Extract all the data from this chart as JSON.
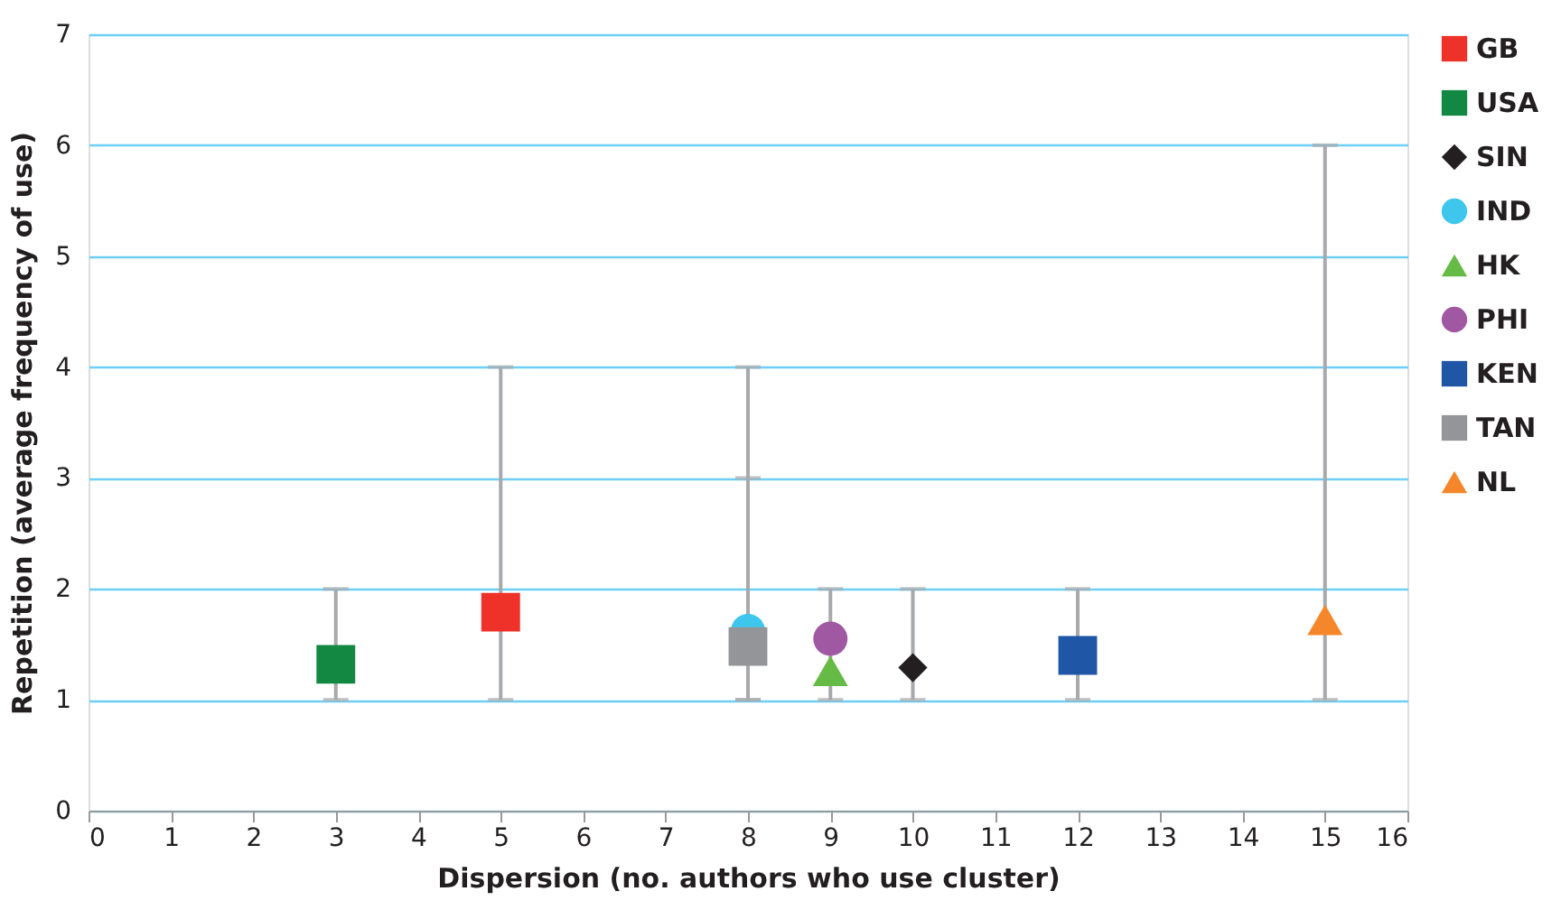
{
  "chart_data": {
    "type": "scatter",
    "xlabel": "Dispersion (no. authors who use cluster)",
    "ylabel": "Repetition (average frequency of use)",
    "xlim": [
      0,
      16
    ],
    "xticks": [
      0,
      1,
      2,
      3,
      4,
      5,
      6,
      7,
      8,
      9,
      10,
      11,
      12,
      13,
      14,
      15,
      16
    ],
    "ylim": [
      0,
      7
    ],
    "yticks": [
      0,
      1,
      2,
      3,
      4,
      5,
      6,
      7
    ],
    "grid": "y",
    "legend": "right",
    "series": [
      {
        "name": "GB",
        "color": "#ee3129",
        "marker": "square",
        "x": [
          5
        ],
        "values": [
          1.79
        ],
        "errors": [
          [
            1,
            4
          ]
        ]
      },
      {
        "name": "USA",
        "color": "#138843",
        "marker": "square",
        "x": [
          3
        ],
        "values": [
          1.32
        ],
        "errors": [
          [
            1,
            2
          ]
        ]
      },
      {
        "name": "SIN",
        "color": "#231f20",
        "marker": "diamond",
        "x": [
          10
        ],
        "values": [
          1.29
        ],
        "errors": [
          [
            1,
            2
          ]
        ]
      },
      {
        "name": "IND",
        "color": "#3ec6ec",
        "marker": "circle",
        "x": [
          8
        ],
        "values": [
          1.62
        ],
        "errors": [
          [
            1,
            4
          ]
        ]
      },
      {
        "name": "HK",
        "color": "#66bb46",
        "marker": "triangle",
        "x": [
          9
        ],
        "values": [
          1.26
        ],
        "errors": [
          [
            1,
            2
          ]
        ]
      },
      {
        "name": "PHI",
        "color": "#a058a3",
        "marker": "circle",
        "x": [
          9
        ],
        "values": [
          1.55
        ]
      },
      {
        "name": "KEN",
        "color": "#1f57a6",
        "marker": "square",
        "x": [
          12
        ],
        "values": [
          1.4
        ],
        "errors": [
          [
            1,
            2
          ]
        ]
      },
      {
        "name": "TAN",
        "color": "#939598",
        "marker": "square",
        "x": [
          8
        ],
        "values": [
          1.48
        ],
        "errors": [
          [
            1,
            3
          ]
        ]
      },
      {
        "name": "NL",
        "color": "#f6862a",
        "marker": "triangle",
        "x": [
          15
        ],
        "values": [
          1.72
        ],
        "errors": [
          [
            1,
            6
          ]
        ]
      }
    ]
  }
}
